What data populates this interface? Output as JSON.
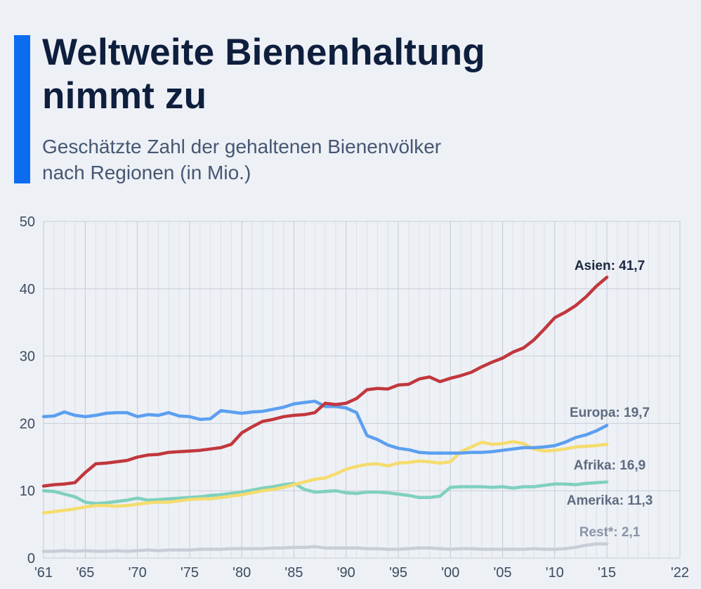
{
  "title": "Weltweite Bienenhaltung\nnimmt zu",
  "subtitle": "Geschätzte Zahl der gehaltenen Bienenvölker\nnach Regionen (in Mio.)",
  "colors": {
    "accent": "#0b6cf0",
    "Asien": "#c1373d",
    "Europa": "#5b9ff0",
    "Afrika": "#f5dc6e",
    "Amerika": "#7fd0bf",
    "Rest": "#c8cdd6"
  },
  "chart_data": {
    "type": "line",
    "title": "Weltweite Bienenhaltung nimmt zu",
    "subtitle": "Geschätzte Zahl der gehaltenen Bienenvölker nach Regionen (in Mio.)",
    "xlabel": "",
    "ylabel": "",
    "xlim": [
      1961,
      2022
    ],
    "ylim": [
      0,
      50
    ],
    "yticks": [
      0,
      10,
      20,
      30,
      40,
      50
    ],
    "xticks": [
      {
        "year": 1961,
        "label": "'61"
      },
      {
        "year": 1965,
        "label": "'65"
      },
      {
        "year": 1970,
        "label": "'70"
      },
      {
        "year": 1975,
        "label": "'75"
      },
      {
        "year": 1980,
        "label": "'80"
      },
      {
        "year": 1985,
        "label": "'85"
      },
      {
        "year": 1990,
        "label": "'90"
      },
      {
        "year": 1995,
        "label": "'95"
      },
      {
        "year": 2000,
        "label": "'00"
      },
      {
        "year": 2005,
        "label": "'05"
      },
      {
        "year": 2010,
        "label": "'10"
      },
      {
        "year": 2015,
        "label": "'15"
      },
      {
        "year": 2022,
        "label": "'22"
      }
    ],
    "grid": true,
    "x": [
      1961,
      1962,
      1963,
      1964,
      1965,
      1966,
      1967,
      1968,
      1969,
      1970,
      1971,
      1972,
      1973,
      1974,
      1975,
      1976,
      1977,
      1978,
      1979,
      1980,
      1981,
      1982,
      1983,
      1984,
      1985,
      1986,
      1987,
      1988,
      1989,
      1990,
      1991,
      1992,
      1993,
      1994,
      1995,
      1996,
      1997,
      1998,
      1999,
      2000,
      2001,
      2002,
      2003,
      2004,
      2005,
      2006,
      2007,
      2008,
      2009,
      2010,
      2011,
      2012,
      2013,
      2014,
      2015
    ],
    "series": [
      {
        "name": "Asien",
        "end_label": "Asien: 41,7",
        "values": [
          10.7,
          10.9,
          11.0,
          11.2,
          12.7,
          14.0,
          14.1,
          14.3,
          14.5,
          15.0,
          15.3,
          15.4,
          15.7,
          15.8,
          15.9,
          16.0,
          16.2,
          16.4,
          16.9,
          18.6,
          19.5,
          20.3,
          20.6,
          21.0,
          21.2,
          21.3,
          21.6,
          23.0,
          22.8,
          23.0,
          23.7,
          25.0,
          25.2,
          25.1,
          25.7,
          25.8,
          26.6,
          26.9,
          26.2,
          26.7,
          27.1,
          27.6,
          28.4,
          29.1,
          29.7,
          30.6,
          31.2,
          32.4,
          34.0,
          35.7,
          36.5,
          37.5,
          38.8,
          40.4,
          41.7
        ]
      },
      {
        "name": "Europa",
        "end_label": "Europa: 19,7",
        "values": [
          21.0,
          21.1,
          21.7,
          21.2,
          21.0,
          21.2,
          21.5,
          21.6,
          21.6,
          21.0,
          21.3,
          21.2,
          21.6,
          21.1,
          21.0,
          20.6,
          20.7,
          21.9,
          21.7,
          21.5,
          21.7,
          21.8,
          22.1,
          22.4,
          22.9,
          23.1,
          23.3,
          22.5,
          22.5,
          22.3,
          21.6,
          18.2,
          17.6,
          16.8,
          16.3,
          16.1,
          15.7,
          15.6,
          15.6,
          15.6,
          15.6,
          15.7,
          15.7,
          15.8,
          16.0,
          16.2,
          16.4,
          16.4,
          16.5,
          16.7,
          17.2,
          17.9,
          18.3,
          18.9,
          19.7
        ]
      },
      {
        "name": "Afrika",
        "end_label": "Afrika: 16,9",
        "values": [
          6.7,
          6.9,
          7.1,
          7.3,
          7.6,
          7.8,
          7.8,
          7.7,
          7.8,
          8.0,
          8.2,
          8.3,
          8.3,
          8.5,
          8.7,
          8.8,
          8.8,
          9.0,
          9.2,
          9.4,
          9.7,
          10.0,
          10.2,
          10.5,
          10.9,
          11.3,
          11.7,
          11.9,
          12.5,
          13.2,
          13.6,
          13.9,
          14.0,
          13.7,
          14.1,
          14.2,
          14.4,
          14.3,
          14.1,
          14.3,
          15.8,
          16.5,
          17.2,
          16.9,
          17.0,
          17.3,
          17.0,
          16.2,
          15.9,
          16.0,
          16.2,
          16.5,
          16.6,
          16.7,
          16.9
        ]
      },
      {
        "name": "Amerika",
        "end_label": "Amerika: 11,3",
        "values": [
          10.0,
          9.9,
          9.5,
          9.1,
          8.3,
          8.1,
          8.2,
          8.4,
          8.6,
          8.9,
          8.6,
          8.7,
          8.8,
          8.9,
          9.0,
          9.1,
          9.3,
          9.4,
          9.6,
          9.8,
          10.1,
          10.4,
          10.6,
          10.9,
          11.1,
          10.2,
          9.8,
          9.9,
          10.0,
          9.7,
          9.6,
          9.8,
          9.8,
          9.7,
          9.5,
          9.3,
          9.0,
          9.0,
          9.2,
          10.5,
          10.6,
          10.6,
          10.6,
          10.5,
          10.6,
          10.4,
          10.6,
          10.6,
          10.8,
          11.0,
          11.0,
          10.9,
          11.1,
          11.2,
          11.3
        ]
      },
      {
        "name": "Rest",
        "end_label": "Rest*: 2,1",
        "values": [
          1.0,
          1.0,
          1.1,
          1.0,
          1.1,
          1.0,
          1.0,
          1.1,
          1.0,
          1.1,
          1.2,
          1.1,
          1.2,
          1.2,
          1.2,
          1.3,
          1.3,
          1.3,
          1.4,
          1.4,
          1.4,
          1.4,
          1.5,
          1.5,
          1.6,
          1.6,
          1.7,
          1.5,
          1.5,
          1.5,
          1.5,
          1.4,
          1.4,
          1.3,
          1.3,
          1.4,
          1.5,
          1.5,
          1.4,
          1.3,
          1.4,
          1.4,
          1.3,
          1.3,
          1.3,
          1.3,
          1.3,
          1.4,
          1.3,
          1.3,
          1.4,
          1.6,
          1.9,
          2.1,
          2.1
        ]
      }
    ]
  }
}
